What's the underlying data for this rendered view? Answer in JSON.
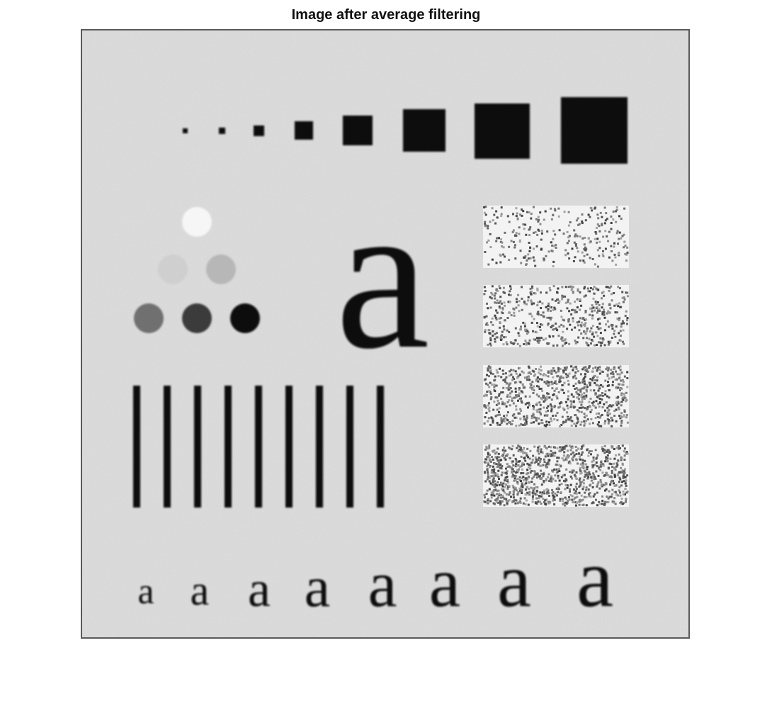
{
  "figure": {
    "title": "Image after average filtering"
  },
  "image": {
    "background_gray": "#dcdcdc",
    "frame_color": "#5a5a5a",
    "glyph": "a",
    "circle_grays": [
      "#f6f6f6",
      "#cfcfcf",
      "#b7b7b7",
      "#6f6f6f",
      "#3a3a3a",
      "#0f0f0f"
    ],
    "ink_color": "#0c0c0c",
    "noise_densities": [
      0.18,
      0.32,
      0.48,
      0.62
    ]
  }
}
